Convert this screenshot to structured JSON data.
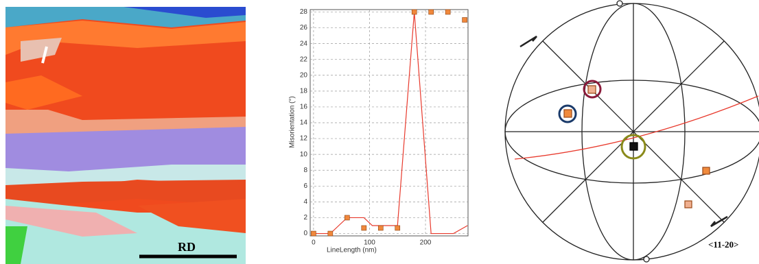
{
  "chart_data": {
    "type": "line",
    "xlabel": "LineLength (nm)",
    "ylabel": "Misorientation (°)",
    "xlim": [
      -6,
      276
    ],
    "ylim": [
      -0.3,
      28.3
    ],
    "xticks": [
      0,
      100,
      200
    ],
    "yticks": [
      0,
      2,
      4,
      6,
      8,
      10,
      12,
      14,
      16,
      18,
      20,
      22,
      24,
      26,
      28
    ],
    "grid": true,
    "series": [
      {
        "type": "line",
        "color": "#e8392c",
        "x": [
          0,
          30,
          45,
          60,
          90,
          105,
          150,
          180,
          210,
          250,
          275
        ],
        "values": [
          0,
          0,
          1,
          2,
          2,
          1,
          1,
          28,
          0,
          0,
          1
        ]
      },
      {
        "type": "scatter",
        "color": "#f0883c",
        "x": [
          0,
          30,
          60,
          90,
          120,
          150,
          180,
          210,
          240,
          270
        ],
        "values": [
          0,
          0,
          2,
          0.7,
          0.7,
          0.7,
          28,
          28,
          28,
          27
        ]
      }
    ]
  },
  "annotations": {
    "scale_label": "RD",
    "pole_label": "<11-20>"
  }
}
